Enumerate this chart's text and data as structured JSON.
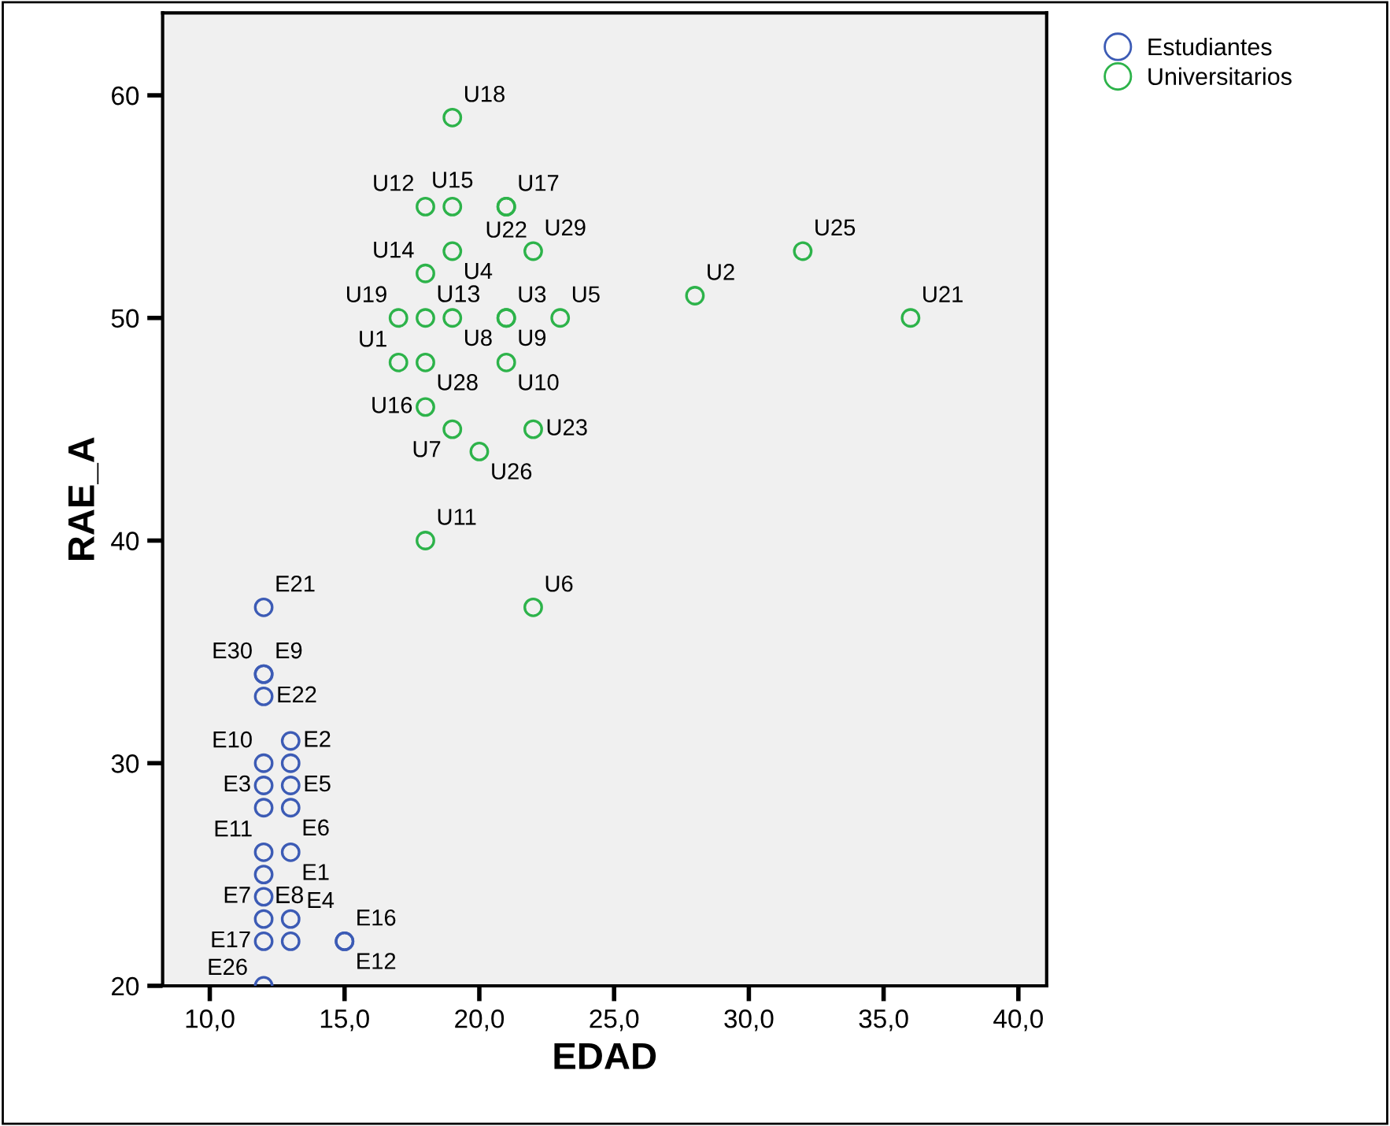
{
  "chart_data": {
    "type": "scatter",
    "xlabel": "EDAD",
    "ylabel": "RAE_A",
    "xlim": [
      8.25,
      41.05
    ],
    "ylim": [
      20,
      63.7
    ],
    "xticks": [
      {
        "value": 10,
        "label": "10,0"
      },
      {
        "value": 15,
        "label": "15,0"
      },
      {
        "value": 20,
        "label": "20,0"
      },
      {
        "value": 25,
        "label": "25,0"
      },
      {
        "value": 30,
        "label": "30,0"
      },
      {
        "value": 35,
        "label": "35,0"
      },
      {
        "value": 40,
        "label": "40,0"
      }
    ],
    "yticks": [
      20,
      30,
      40,
      50,
      60
    ],
    "grid": false,
    "legend": "top right",
    "marker": "circle",
    "series": [
      {
        "name": "Estudiantes",
        "color": "#3c5bb5",
        "x": [
          12,
          12,
          12,
          12,
          13,
          12,
          13,
          12,
          13,
          12,
          13,
          12,
          13,
          12,
          12,
          12,
          13,
          12,
          13,
          15,
          15,
          12
        ],
        "values": [
          37,
          34,
          34,
          33,
          31,
          30,
          30,
          29,
          29,
          28,
          28,
          26,
          26,
          25,
          24,
          23,
          23,
          22,
          22,
          22,
          22,
          20
        ],
        "value_labels": [
          "E21",
          "E9",
          "E30",
          "E22",
          "E2",
          "E10",
          null,
          "E3",
          "E5",
          null,
          "E6",
          "E11",
          "E1",
          null,
          "E7",
          "E8",
          "E4",
          "E17",
          null,
          "E16",
          "E12",
          "E26"
        ]
      },
      {
        "name": "Universitarios",
        "color": "#2db34a",
        "x": [
          19,
          18,
          19,
          21,
          21,
          19,
          22,
          32,
          18,
          28,
          17,
          18,
          19,
          21,
          21,
          23,
          36,
          17,
          18,
          21,
          18,
          19,
          22,
          20,
          18,
          22
        ],
        "values": [
          59,
          55,
          55,
          55,
          55,
          53,
          53,
          53,
          52,
          51,
          50,
          50,
          50,
          50,
          50,
          50,
          50,
          48,
          48,
          48,
          46,
          45,
          45,
          44,
          40,
          37
        ],
        "value_labels": [
          "U18",
          "U12",
          "U15",
          "U17",
          "U22",
          "U4",
          "U29",
          "U25",
          "U14",
          "U2",
          "U19",
          "U13",
          "U8",
          "U3",
          "U9",
          "U5",
          "U21",
          "U1",
          "U28",
          "U10",
          "U16",
          "U7",
          "U23",
          "U26",
          "U11",
          "U6"
        ]
      }
    ]
  }
}
